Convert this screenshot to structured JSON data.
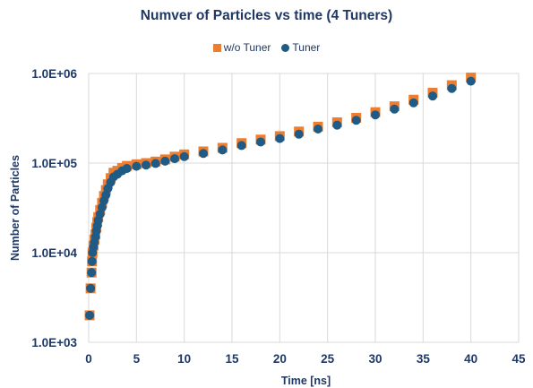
{
  "colors": {
    "wo_tuner": "#ed7d31",
    "tuner": "#1f5b84",
    "grid": "#d9d9d9",
    "text": "#1f3864"
  },
  "chart_data": {
    "type": "scatter",
    "title": "Numver of Particles vs time (4 Tuners)",
    "xlabel": "Time [ns]",
    "ylabel": "Number of Particles",
    "xlim": [
      0,
      45
    ],
    "ylim": [
      1000,
      1000000
    ],
    "yscale": "log",
    "grid": true,
    "legend_position": "top",
    "x_ticks": [
      "0",
      "5",
      "10",
      "15",
      "20",
      "25",
      "30",
      "35",
      "40",
      "45"
    ],
    "y_ticks": [
      "1.0E+03",
      "1.0E+04",
      "1.0E+05",
      "1.0E+06"
    ],
    "series": [
      {
        "name": "w/o Tuner",
        "marker": "square",
        "x": [
          0.1,
          0.2,
          0.3,
          0.35,
          0.4,
          0.5,
          0.6,
          0.7,
          0.8,
          0.9,
          1.0,
          1.2,
          1.4,
          1.6,
          1.8,
          2.0,
          2.3,
          2.6,
          3.0,
          3.5,
          4,
          5,
          6,
          7,
          8,
          9,
          10,
          12,
          14,
          16,
          18,
          20,
          22,
          24,
          26,
          28,
          30,
          32,
          34,
          36,
          38,
          40
        ],
        "y": [
          2000,
          4000,
          6000,
          8000,
          10000,
          12000,
          14000,
          16000,
          19000,
          22000,
          25000,
          30000,
          36000,
          43000,
          50000,
          58000,
          68000,
          78000,
          82000,
          88000,
          93000,
          97000,
          100000,
          104000,
          110000,
          118000,
          125000,
          135000,
          148000,
          167000,
          183000,
          200000,
          225000,
          255000,
          285000,
          320000,
          370000,
          430000,
          510000,
          610000,
          740000,
          900000
        ]
      },
      {
        "name": "Tuner",
        "marker": "circle",
        "x": [
          0.1,
          0.2,
          0.3,
          0.35,
          0.4,
          0.5,
          0.6,
          0.7,
          0.8,
          0.9,
          1.0,
          1.2,
          1.4,
          1.6,
          1.8,
          2.0,
          2.3,
          2.6,
          3.0,
          3.5,
          4,
          5,
          6,
          7,
          8,
          9,
          10,
          12,
          14,
          16,
          18,
          20,
          22,
          24,
          26,
          28,
          30,
          32,
          34,
          36,
          38,
          40
        ],
        "y": [
          2000,
          4000,
          6000,
          8000,
          10000,
          11500,
          13000,
          15000,
          17500,
          20000,
          23000,
          27000,
          32000,
          38000,
          44000,
          52000,
          61000,
          70000,
          75000,
          82000,
          87000,
          92000,
          95000,
          99000,
          105000,
          112000,
          118000,
          128000,
          140000,
          157000,
          172000,
          188000,
          210000,
          240000,
          265000,
          300000,
          345000,
          400000,
          470000,
          560000,
          680000,
          820000
        ]
      }
    ]
  }
}
